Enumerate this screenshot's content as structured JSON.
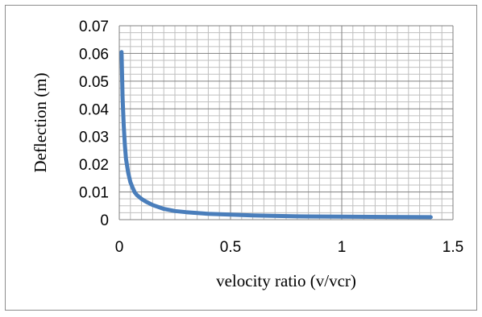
{
  "chart_data": {
    "type": "line",
    "title": "",
    "xlabel": "velocity ratio (v/vcr)",
    "ylabel": "Deflection  (m)",
    "xlim": [
      0,
      1.5
    ],
    "ylim": [
      0,
      0.07
    ],
    "x_ticks": [
      "0",
      "0.5",
      "1",
      "1.5"
    ],
    "y_ticks": [
      "0",
      "0.01",
      "0.02",
      "0.03",
      "0.04",
      "0.05",
      "0.06",
      "0.07"
    ],
    "grid": true,
    "series_color": "#4a7ebb",
    "series": [
      {
        "x": [
          0.01,
          0.015,
          0.02,
          0.025,
          0.03,
          0.04,
          0.05,
          0.06,
          0.07,
          0.08,
          0.1,
          0.12,
          0.15,
          0.2,
          0.25,
          0.3,
          0.4,
          0.5,
          0.6,
          0.8,
          1.0,
          1.2,
          1.4
        ],
        "values": [
          0.0605,
          0.044,
          0.034,
          0.027,
          0.022,
          0.017,
          0.0135,
          0.0115,
          0.0098,
          0.0088,
          0.0075,
          0.0065,
          0.0053,
          0.0039,
          0.0031,
          0.0027,
          0.0021,
          0.0018,
          0.0015,
          0.0012,
          0.0011,
          0.001,
          0.0009
        ]
      }
    ]
  }
}
